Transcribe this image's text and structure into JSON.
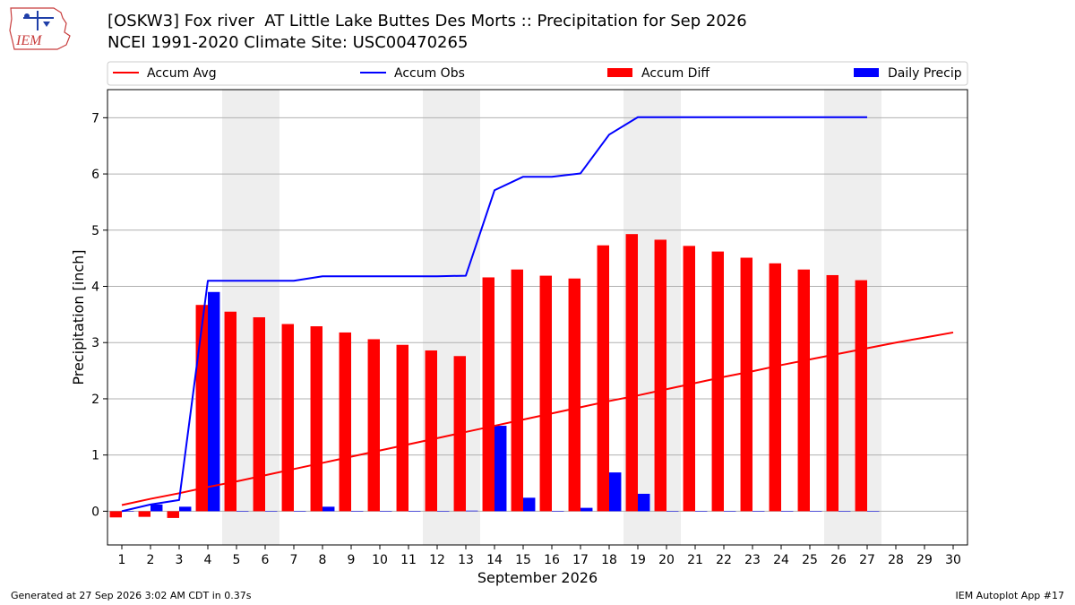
{
  "header": {
    "title_line1": "[OSKW3] Fox river  AT Little Lake Buttes Des Morts :: Precipitation for Sep 2026",
    "title_line2": "NCEI 1991-2020 Climate Site: USC00470265",
    "logo_text": "IEM"
  },
  "footer": {
    "left": "Generated at 27 Sep 2026 3:02 AM CDT in 0.37s",
    "right": "IEM Autoplot App #17"
  },
  "colors": {
    "avg": "#ff0000",
    "obs": "#0000ff",
    "diff": "#ff0000",
    "daily": "#0000ff",
    "weekend_shade": "#eeeeee",
    "grid": "#b0b0b0"
  },
  "chart_data": {
    "type": "bar",
    "xlabel": "September 2026",
    "ylabel": "Precipitation [inch]",
    "xlim": [
      0.5,
      30.5
    ],
    "ylim": [
      -0.6,
      7.5
    ],
    "yticks": [
      0,
      1,
      2,
      3,
      4,
      5,
      6,
      7
    ],
    "grid": "horizontal",
    "legend_position": "top",
    "shaded_weekends": [
      [
        5,
        6
      ],
      [
        12,
        13
      ],
      [
        19,
        20
      ],
      [
        26,
        27
      ]
    ],
    "days": [
      1,
      2,
      3,
      4,
      5,
      6,
      7,
      8,
      9,
      10,
      11,
      12,
      13,
      14,
      15,
      16,
      17,
      18,
      19,
      20,
      21,
      22,
      23,
      24,
      25,
      26,
      27,
      28,
      29,
      30
    ],
    "series": [
      {
        "name": "Accum Avg",
        "kind": "line",
        "values": [
          0.11,
          0.22,
          0.32,
          0.43,
          0.53,
          0.64,
          0.75,
          0.86,
          0.97,
          1.08,
          1.19,
          1.3,
          1.41,
          1.52,
          1.63,
          1.74,
          1.85,
          1.96,
          2.06,
          2.17,
          2.28,
          2.39,
          2.49,
          2.6,
          2.7,
          2.8,
          2.9,
          3.0,
          3.09,
          3.18
        ]
      },
      {
        "name": "Accum Obs",
        "kind": "line",
        "values": [
          0.0,
          0.12,
          0.2,
          4.1,
          4.1,
          4.1,
          4.1,
          4.18,
          4.18,
          4.18,
          4.18,
          4.18,
          4.19,
          5.71,
          5.95,
          5.95,
          6.01,
          6.7,
          7.01,
          7.01,
          7.01,
          7.01,
          7.01,
          7.01,
          7.01,
          7.01,
          7.01
        ]
      },
      {
        "name": "Accum Diff",
        "kind": "bar",
        "values": [
          -0.11,
          -0.1,
          -0.12,
          3.67,
          3.55,
          3.45,
          3.33,
          3.29,
          3.18,
          3.06,
          2.96,
          2.86,
          2.76,
          4.16,
          4.3,
          4.19,
          4.14,
          4.73,
          4.93,
          4.83,
          4.72,
          4.62,
          4.51,
          4.41,
          4.3,
          4.2,
          4.11
        ]
      },
      {
        "name": "Daily Precip",
        "kind": "bar",
        "values": [
          0.0,
          0.12,
          0.08,
          3.9,
          0.0,
          0.0,
          0.0,
          0.08,
          0.0,
          0.0,
          0.0,
          0.0,
          0.01,
          1.52,
          0.24,
          0.0,
          0.06,
          0.69,
          0.31,
          0.0,
          0.0,
          0.0,
          0.0,
          0.0,
          0.0,
          0.0,
          0.0
        ]
      }
    ]
  }
}
